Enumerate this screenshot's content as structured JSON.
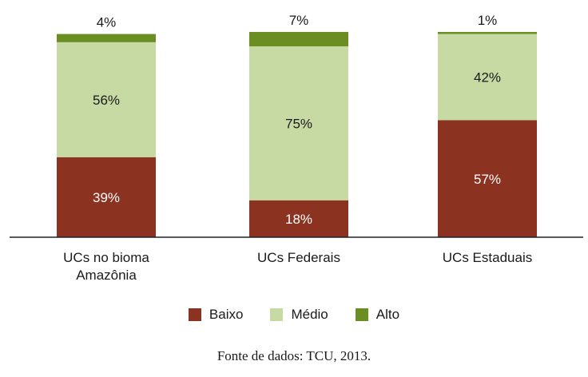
{
  "chart_data": {
    "type": "bar",
    "stacked": true,
    "categories": [
      [
        "UCs no bioma",
        "Amazônia"
      ],
      [
        "UCs Federais"
      ],
      [
        "UCs Estaduais"
      ]
    ],
    "series": [
      {
        "name": "Baixo",
        "values": [
          39,
          18,
          57
        ],
        "color": "#8b3220",
        "label_color": "#ffffff"
      },
      {
        "name": "Médio",
        "values": [
          56,
          75,
          42
        ],
        "color": "#c8daa4",
        "label_color": "#1a1a1a"
      },
      {
        "name": "Alto",
        "values": [
          4,
          7,
          1
        ],
        "color": "#6b8e23",
        "label_color": "#1a1a1a"
      }
    ],
    "data_labels": [
      [
        "39%",
        "56%",
        "4%"
      ],
      [
        "18%",
        "75%",
        "7%"
      ],
      [
        "57%",
        "42%",
        "1%"
      ]
    ],
    "ylim": [
      0,
      100
    ],
    "legend_position": "bottom"
  },
  "source_note": "Fonte de dados: TCU, 2013."
}
